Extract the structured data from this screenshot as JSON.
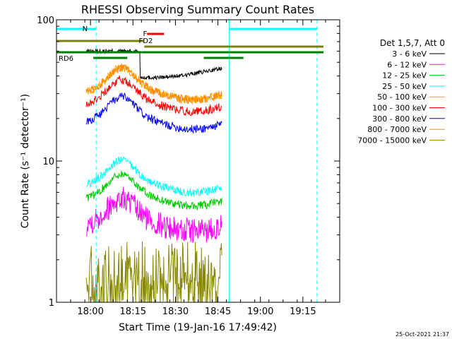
{
  "chart_data": {
    "type": "line",
    "title": "RHESSI Observing Summary Count Rates",
    "xlabel": "Start Time (19-Jan-16 17:49:42)",
    "ylabel": "Count Rate (s⁻¹ detector⁻¹)",
    "y_scale": "log",
    "ylim": [
      1,
      100
    ],
    "xlim_minutes": [
      -11,
      37
    ],
    "x_ticks": [
      {
        "label": "18:00",
        "min": -60
      },
      {
        "label": "18:15",
        "min": -45
      },
      {
        "label": "18:30",
        "min": -30
      },
      {
        "label": "18:45",
        "min": -15
      },
      {
        "label": "19:00",
        "min": 0
      },
      {
        "label": "19:15",
        "min": 15
      }
    ],
    "y_ticks": [
      {
        "label": "100",
        "value": 100
      },
      {
        "label": "10",
        "value": 10
      },
      {
        "label": "1",
        "value": 1
      }
    ],
    "legend_title": "Det 1,5,7, Att 0",
    "legend_position": "right",
    "series": [
      {
        "name": "3 - 6 keV",
        "color": "#000000",
        "level": 40
      },
      {
        "name": "6 - 12 keV",
        "color": "#ff00ff",
        "level": 4
      },
      {
        "name": "12 - 25 keV",
        "color": "#00cc00",
        "level": 6
      },
      {
        "name": "25 - 50 keV",
        "color": "#00ffff",
        "level": 7.5
      },
      {
        "name": "50 - 100 keV",
        "color": "#ffa500",
        "level": 34
      },
      {
        "name": "100 - 300 keV",
        "color": "#ff0000",
        "level": 28
      },
      {
        "name": "300 - 800 keV",
        "color": "#0000ff",
        "level": 21
      },
      {
        "name": "800 - 7000 keV",
        "color": "#ff8800",
        "level": 34
      },
      {
        "name": "7000 - 15000 keV",
        "color": "#888800",
        "level": 1.5
      }
    ],
    "annotations": [
      {
        "label": "N",
        "color": "#00ffff"
      },
      {
        "label": "F",
        "color": "#ff0000"
      },
      {
        "label": "FD2",
        "color": "#808000"
      },
      {
        "label": "RD6",
        "color": "#008000"
      }
    ],
    "grid": false
  },
  "footer": {
    "timestamp": "25-Oct-2021 21:37"
  }
}
